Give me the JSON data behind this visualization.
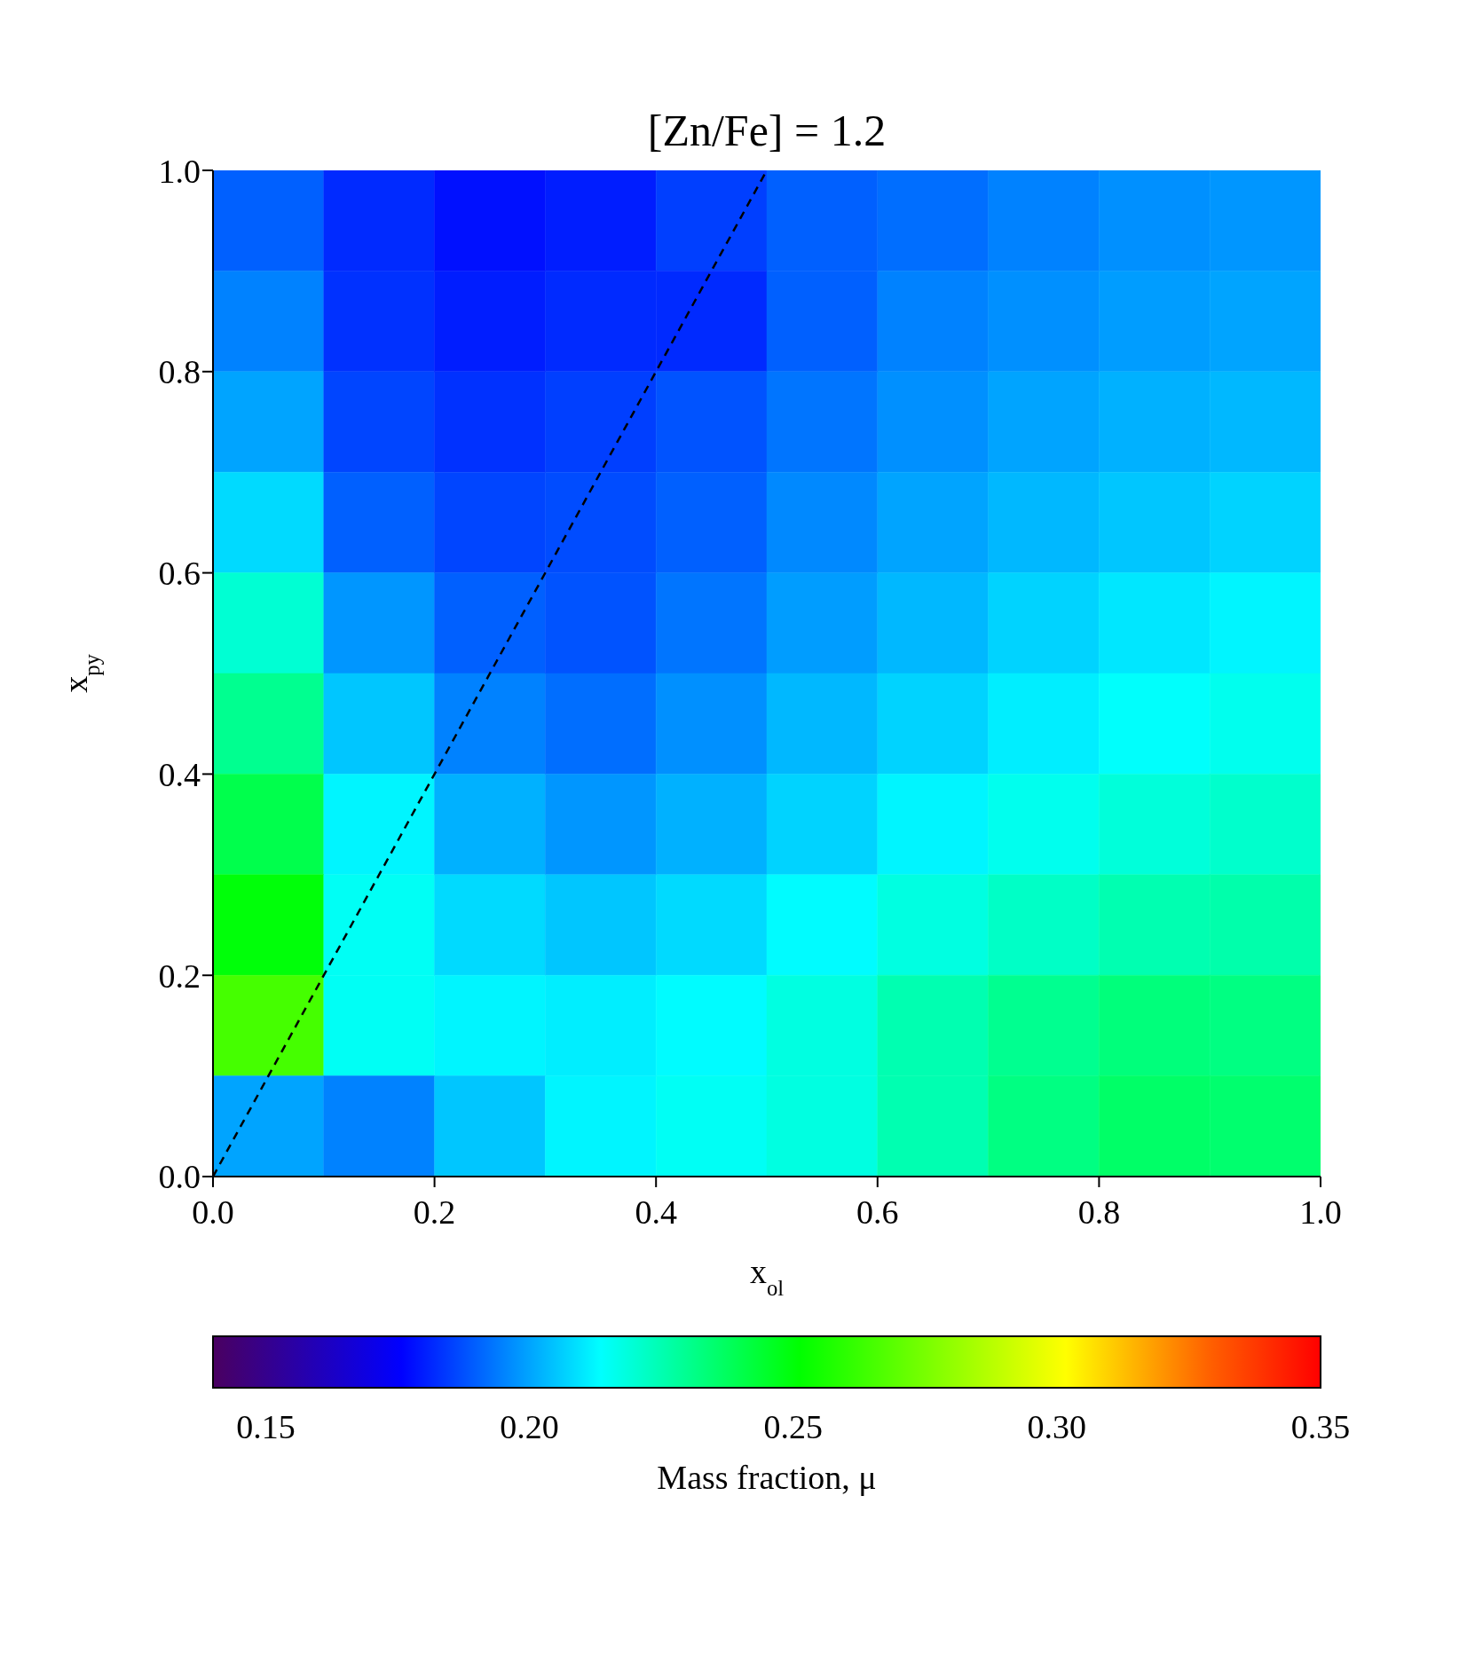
{
  "chart_data": {
    "type": "heatmap",
    "title": "[Zn/Fe] = 1.2",
    "xlabel": "x$_{ol}$",
    "ylabel": "x$_{py}$",
    "clabel": "Mass fraction, μ",
    "x": [
      0.05,
      0.15,
      0.25,
      0.35,
      0.45,
      0.55,
      0.65,
      0.75,
      0.85,
      0.95
    ],
    "cells": [
      [
        0.19,
        0.182,
        0.178,
        0.18,
        0.185,
        0.19,
        0.192,
        0.195,
        0.197,
        0.198
      ],
      [
        0.195,
        0.183,
        0.18,
        0.182,
        0.182,
        0.19,
        0.195,
        0.197,
        0.199,
        0.2
      ],
      [
        0.2,
        0.186,
        0.183,
        0.185,
        0.188,
        0.193,
        0.197,
        0.2,
        0.202,
        0.203
      ],
      [
        0.208,
        0.19,
        0.186,
        0.187,
        0.19,
        0.196,
        0.2,
        0.203,
        0.205,
        0.207
      ],
      [
        0.22,
        0.198,
        0.19,
        0.188,
        0.193,
        0.199,
        0.203,
        0.207,
        0.21,
        0.212
      ],
      [
        0.23,
        0.205,
        0.195,
        0.192,
        0.197,
        0.203,
        0.207,
        0.211,
        0.214,
        0.216
      ],
      [
        0.24,
        0.212,
        0.202,
        0.198,
        0.202,
        0.207,
        0.212,
        0.216,
        0.219,
        0.221
      ],
      [
        0.25,
        0.215,
        0.208,
        0.205,
        0.208,
        0.213,
        0.218,
        0.222,
        0.225,
        0.226
      ],
      [
        0.265,
        0.215,
        0.212,
        0.211,
        0.213,
        0.218,
        0.225,
        0.23,
        0.233,
        0.232
      ],
      [
        0.2,
        0.195,
        0.205,
        0.212,
        0.215,
        0.218,
        0.225,
        0.232,
        0.236,
        0.235
      ]
    ],
    "clim": [
      0.14,
      0.35
    ],
    "cticks": [
      {
        "value": 0.15,
        "label": "0.15"
      },
      {
        "value": 0.2,
        "label": "0.20"
      },
      {
        "value": 0.25,
        "label": "0.25"
      },
      {
        "value": 0.3,
        "label": "0.30"
      },
      {
        "value": 0.35,
        "label": "0.35"
      }
    ],
    "xlim": [
      0,
      1
    ],
    "ylim": [
      0,
      1
    ],
    "xticks": [
      {
        "value": 0,
        "label": "0.0"
      },
      {
        "value": 0.2,
        "label": "0.2"
      },
      {
        "value": 0.4,
        "label": "0.4"
      },
      {
        "value": 0.6,
        "label": "0.6"
      },
      {
        "value": 0.8,
        "label": "0.8"
      },
      {
        "value": 1,
        "label": "1.0"
      }
    ],
    "yticks": [
      {
        "value": 0,
        "label": "0.0"
      },
      {
        "value": 0.2,
        "label": "0.2"
      },
      {
        "value": 0.4,
        "label": "0.4"
      },
      {
        "value": 0.6,
        "label": "0.6"
      },
      {
        "value": 0.8,
        "label": "0.8"
      },
      {
        "value": 1,
        "label": "1.0"
      }
    ],
    "series": [
      {
        "type": "line",
        "color": "#000000",
        "line_style": "dashed",
        "x": [
          0,
          0.5
        ],
        "values": [
          0,
          1
        ]
      }
    ]
  }
}
